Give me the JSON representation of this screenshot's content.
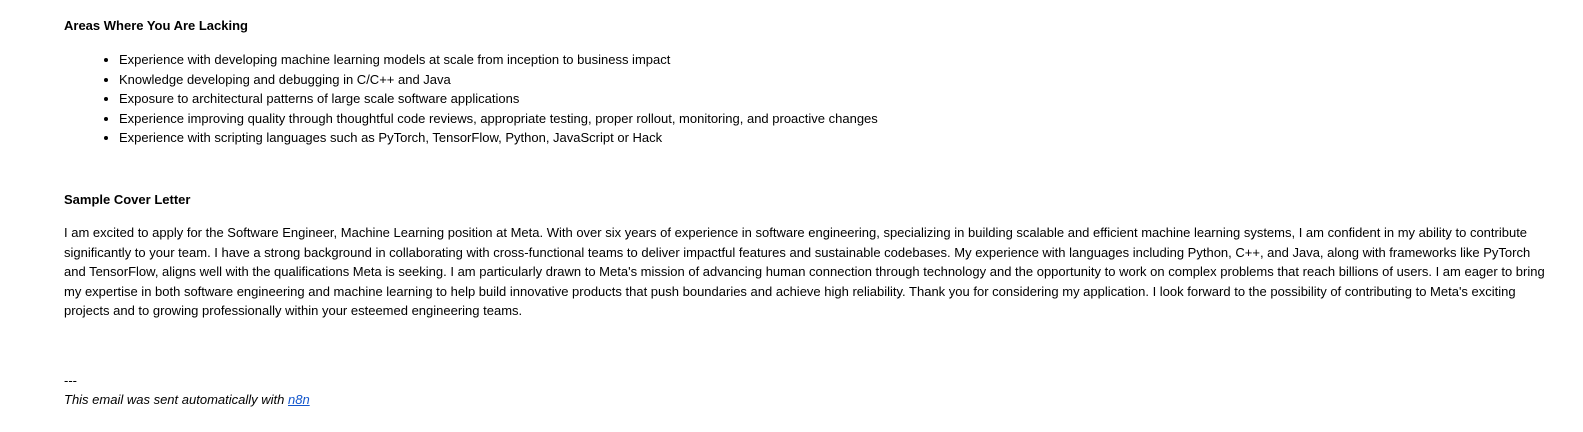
{
  "lacking": {
    "title": "Areas Where You Are Lacking",
    "items": [
      "Experience with developing machine learning models at scale from inception to business impact",
      "Knowledge developing and debugging in C/C++ and Java",
      "Exposure to architectural patterns of large scale software applications",
      "Experience improving quality through thoughtful code reviews, appropriate testing, proper rollout, monitoring, and proactive changes",
      "Experience with scripting languages such as PyTorch, TensorFlow, Python, JavaScript or Hack"
    ]
  },
  "cover_letter": {
    "title": "Sample Cover Letter",
    "body": "I am excited to apply for the Software Engineer, Machine Learning position at Meta. With over six years of experience in software engineering, specializing in building scalable and efficient machine learning systems, I am confident in my ability to contribute significantly to your team. I have a strong background in collaborating with cross-functional teams to deliver impactful features and sustainable codebases. My experience with languages including Python, C++, and Java, along with frameworks like PyTorch and TensorFlow, aligns well with the qualifications Meta is seeking. I am particularly drawn to Meta's mission of advancing human connection through technology and the opportunity to work on complex problems that reach billions of users. I am eager to bring my expertise in both software engineering and machine learning to help build innovative products that push boundaries and achieve high reliability. Thank you for considering my application. I look forward to the possibility of contributing to Meta's exciting projects and to growing professionally within your esteemed engineering teams."
  },
  "footer": {
    "separator": "---",
    "text": "This email was sent automatically with ",
    "link_label": "n8n"
  }
}
